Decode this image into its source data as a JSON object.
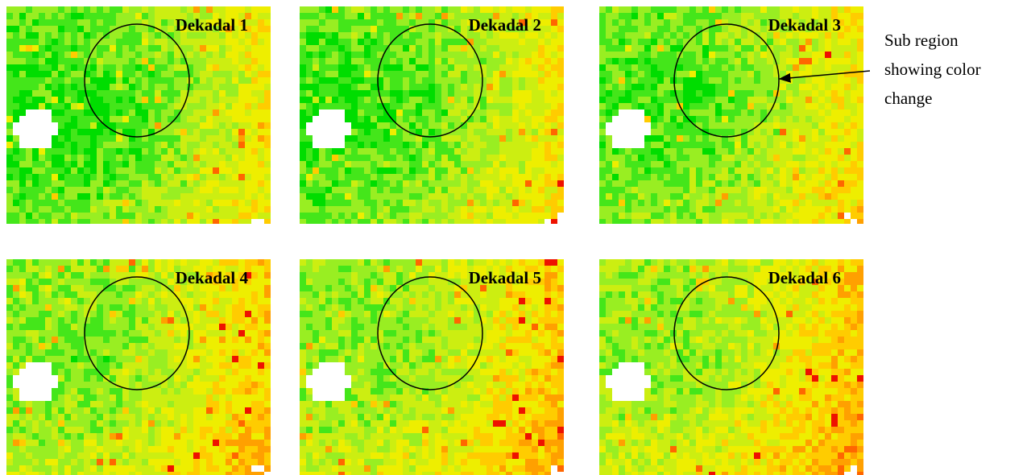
{
  "panels": [
    {
      "label": "Dekadal 1"
    },
    {
      "label": "Dekadal 2"
    },
    {
      "label": "Dekadal 3"
    },
    {
      "label": "Dekadal 4"
    },
    {
      "label": "Dekadal 5"
    },
    {
      "label": "Dekadal 6"
    }
  ],
  "annotation": {
    "lines": [
      "Sub region",
      "showing color",
      "change"
    ]
  }
}
